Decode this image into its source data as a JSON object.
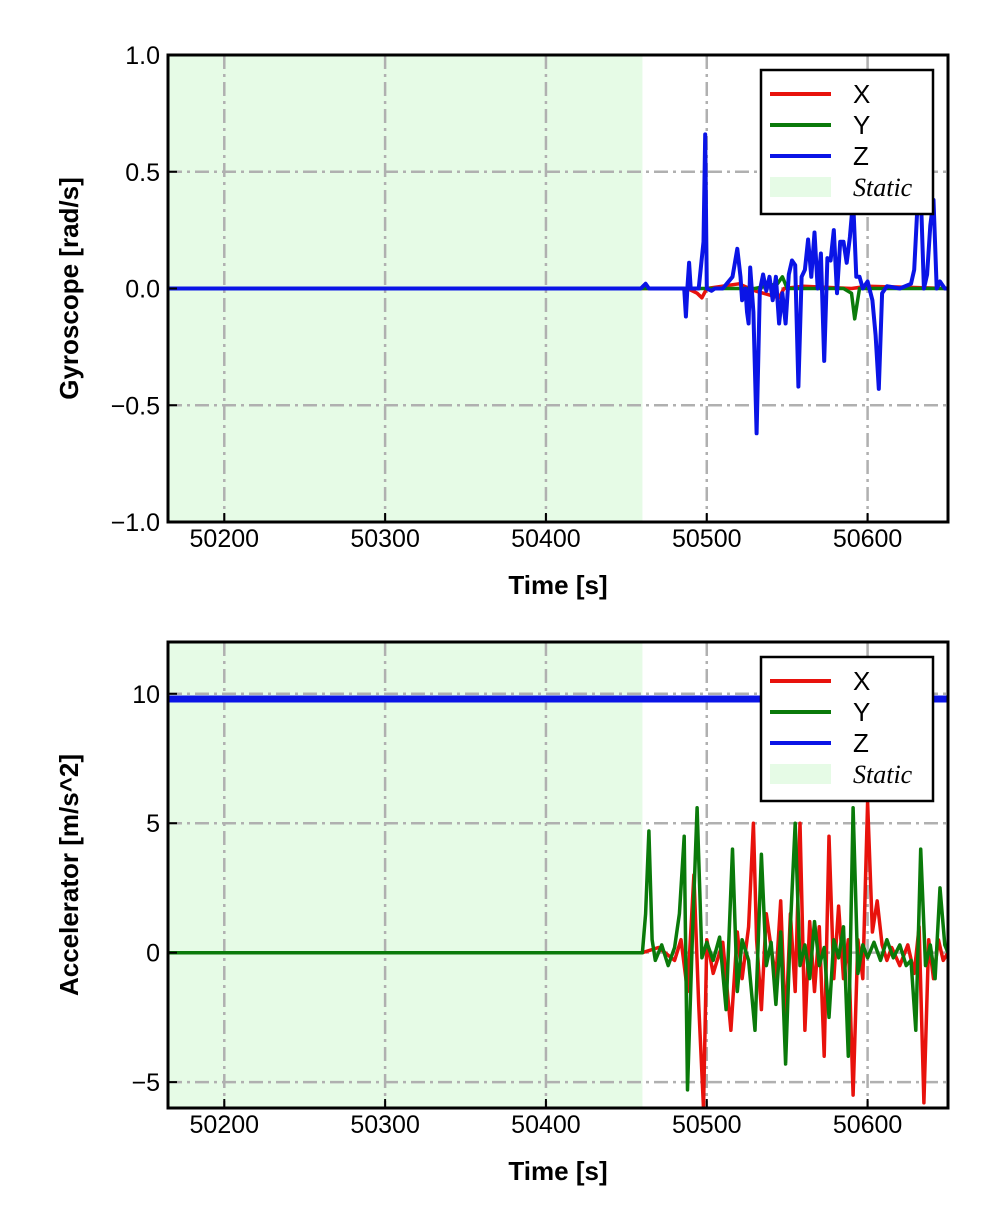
{
  "chart_data": [
    {
      "type": "line",
      "ylabel": "Gyroscope [rad/s]",
      "xlabel": "Time [s]",
      "xlim": [
        50165,
        50650
      ],
      "ylim": [
        -1.0,
        1.0
      ],
      "xticks": [
        50200,
        50300,
        50400,
        50500,
        50600
      ],
      "xtick_labels": [
        "50200",
        "50300",
        "50400",
        "50500",
        "50600"
      ],
      "yticks": [
        -1.0,
        -0.5,
        0.0,
        0.5,
        1.0
      ],
      "ytick_labels": [
        "−1.0",
        "−0.5",
        "0.0",
        "0.5",
        "1.0"
      ],
      "grid": true,
      "legend_position": "top-right",
      "static_region": {
        "label": "Static",
        "x": [
          50165,
          50460
        ],
        "color": "#e6fbe6"
      },
      "series": [
        {
          "name": "X",
          "color": "#e8120c",
          "x": [
            50165,
            50460,
            50488,
            50494,
            50497,
            50500,
            50520,
            50530,
            50545,
            50548,
            50560,
            50590,
            50600,
            50650
          ],
          "y": [
            0,
            0,
            0,
            -0.02,
            -0.04,
            0,
            0.02,
            -0.01,
            -0.04,
            0,
            0.01,
            0,
            0.01,
            0
          ]
        },
        {
          "name": "Y",
          "color": "#0a7a0a",
          "x": [
            50165,
            50460,
            50500,
            50530,
            50544,
            50547,
            50550,
            50585,
            50590,
            50592,
            50595,
            50640,
            50650
          ],
          "y": [
            0,
            0,
            0,
            0,
            0.02,
            0.05,
            0,
            0,
            -0.02,
            -0.13,
            0,
            0,
            0
          ]
        },
        {
          "name": "Z",
          "color": "#0a14e6",
          "x": [
            50165,
            50459,
            50462,
            50464,
            50486,
            50487,
            50488,
            50489,
            50490,
            50495,
            50498,
            50499,
            50500,
            50503,
            50505,
            50510,
            50516,
            50519,
            50521,
            50522,
            50524,
            50525,
            50526,
            50527,
            50529,
            50531,
            50533,
            50535,
            50537,
            50539,
            50541,
            50543,
            50545,
            50547,
            50549,
            50551,
            50553,
            50555,
            50557,
            50559,
            50561,
            50563,
            50565,
            50567,
            50569,
            50571,
            50573,
            50575,
            50577,
            50579,
            50581,
            50583,
            50585,
            50587,
            50589,
            50591,
            50593,
            50595,
            50597,
            50600,
            50603,
            50605,
            50607,
            50609,
            50612,
            50620,
            50627,
            50629,
            50631,
            50633,
            50635,
            50637,
            50639,
            50641,
            50643,
            50645,
            50648,
            50650
          ],
          "y": [
            0,
            0,
            0.02,
            0,
            0,
            -0.12,
            0.01,
            0.11,
            0,
            0,
            0.2,
            0.66,
            0,
            -0.01,
            0,
            0,
            0.05,
            0.17,
            0.05,
            -0.05,
            0,
            -0.1,
            -0.15,
            0.09,
            -0.1,
            -0.62,
            -0.01,
            0.06,
            -0.01,
            0.05,
            -0.05,
            0.05,
            -0.15,
            -0.02,
            -0.15,
            0.06,
            0.12,
            0.1,
            -0.42,
            0.05,
            0.08,
            0.21,
            0.05,
            0.24,
            0,
            0.15,
            -0.31,
            0.13,
            0.12,
            0.25,
            -0.02,
            0.2,
            0.2,
            0.11,
            0.22,
            0.38,
            0.05,
            0.05,
            0,
            0.03,
            -0.05,
            -0.2,
            -0.43,
            -0.02,
            0.01,
            0,
            0.02,
            0.08,
            0.35,
            0.42,
            0,
            0.06,
            0.27,
            0.38,
            0,
            0.03,
            0,
            0
          ]
        }
      ]
    },
    {
      "type": "line",
      "ylabel": "Accelerator [m/s^2]",
      "xlabel": "Time [s]",
      "xlim": [
        50165,
        50650
      ],
      "ylim": [
        -6.0,
        12.0
      ],
      "xticks": [
        50200,
        50300,
        50400,
        50500,
        50600
      ],
      "xtick_labels": [
        "50200",
        "50300",
        "50400",
        "50500",
        "50600"
      ],
      "yticks": [
        -5,
        0,
        5,
        10
      ],
      "ytick_labels": [
        "−5",
        "0",
        "5",
        "10"
      ],
      "grid": true,
      "legend_position": "top-right",
      "static_region": {
        "label": "Static",
        "x": [
          50165,
          50460
        ],
        "color": "#e6fbe6"
      },
      "series": [
        {
          "name": "X",
          "color": "#e8120c",
          "x": [
            50165,
            50460,
            50470,
            50480,
            50484,
            50488,
            50492,
            50495,
            50498,
            50500,
            50504,
            50510,
            50515,
            50519,
            50522,
            50526,
            50529,
            50531,
            50534,
            50537,
            50540,
            50543,
            50546,
            50549,
            50552,
            50555,
            50558,
            50561,
            50564,
            50567,
            50570,
            50573,
            50576,
            50579,
            50582,
            50585,
            50588,
            50591,
            50594,
            50597,
            50600,
            50603,
            50606,
            50609,
            50612,
            50615,
            50620,
            50625,
            50629,
            50632,
            50635,
            50638,
            50641,
            50644,
            50647,
            50650
          ],
          "y": [
            0,
            0,
            0.2,
            -0.3,
            0.5,
            -1.5,
            3.0,
            -2.0,
            -6.0,
            0.5,
            -0.8,
            0.4,
            -3.0,
            0.8,
            -1.0,
            1.0,
            5.0,
            0.5,
            -2.2,
            1.5,
            0.2,
            -1.0,
            2.0,
            -3.0,
            1.5,
            -1.5,
            5.0,
            -3.0,
            1.2,
            -1.5,
            1.0,
            -4.0,
            4.5,
            -1.0,
            1.8,
            -1.0,
            0.5,
            -5.5,
            0.5,
            -1.0,
            5.8,
            0.8,
            2.0,
            0.3,
            -0.3,
            0.2,
            -0.5,
            0.3,
            -0.8,
            1.0,
            -5.8,
            0.5,
            -1.0,
            0.5,
            -0.3,
            0
          ]
        },
        {
          "name": "Y",
          "color": "#0a7a0a",
          "x": [
            50165,
            50460,
            50462,
            50464,
            50466,
            50468,
            50472,
            50476,
            50480,
            50483,
            50486,
            50488,
            50491,
            50494,
            50497,
            50500,
            50504,
            50508,
            50512,
            50516,
            50519,
            50522,
            50526,
            50530,
            50534,
            50537,
            50540,
            50543,
            50546,
            50549,
            50552,
            50555,
            50558,
            50561,
            50564,
            50567,
            50570,
            50573,
            50576,
            50579,
            50582,
            50585,
            50588,
            50591,
            50594,
            50597,
            50600,
            50604,
            50608,
            50612,
            50616,
            50620,
            50624,
            50627,
            50630,
            50633,
            50636,
            50639,
            50642,
            50645,
            50648,
            50650
          ],
          "y": [
            0,
            0,
            1.5,
            4.7,
            0.5,
            -0.3,
            0.3,
            -0.5,
            0.2,
            1.5,
            4.5,
            -5.3,
            0.5,
            5.6,
            -0.2,
            0.4,
            -0.3,
            0.6,
            -2.2,
            4.0,
            -1.5,
            0.5,
            -0.3,
            -3.0,
            3.8,
            -0.5,
            0.4,
            -2.0,
            0.8,
            -4.3,
            1.0,
            5.0,
            -0.5,
            0.3,
            -1.0,
            1.2,
            -0.5,
            0.2,
            -2.5,
            0.5,
            -0.2,
            1.0,
            -4.0,
            5.6,
            -0.8,
            0.3,
            -0.2,
            0.4,
            -0.3,
            0.5,
            -0.2,
            0.3,
            -0.5,
            -0.3,
            -3.0,
            4.0,
            -0.5,
            0.3,
            -1.0,
            2.5,
            0.3,
            0
          ]
        },
        {
          "name": "Z",
          "color": "#0a14e6",
          "x": [
            50165,
            50460,
            50500,
            50550,
            50600,
            50650
          ],
          "y": [
            9.8,
            9.8,
            9.8,
            9.8,
            9.8,
            9.8
          ]
        }
      ]
    }
  ]
}
